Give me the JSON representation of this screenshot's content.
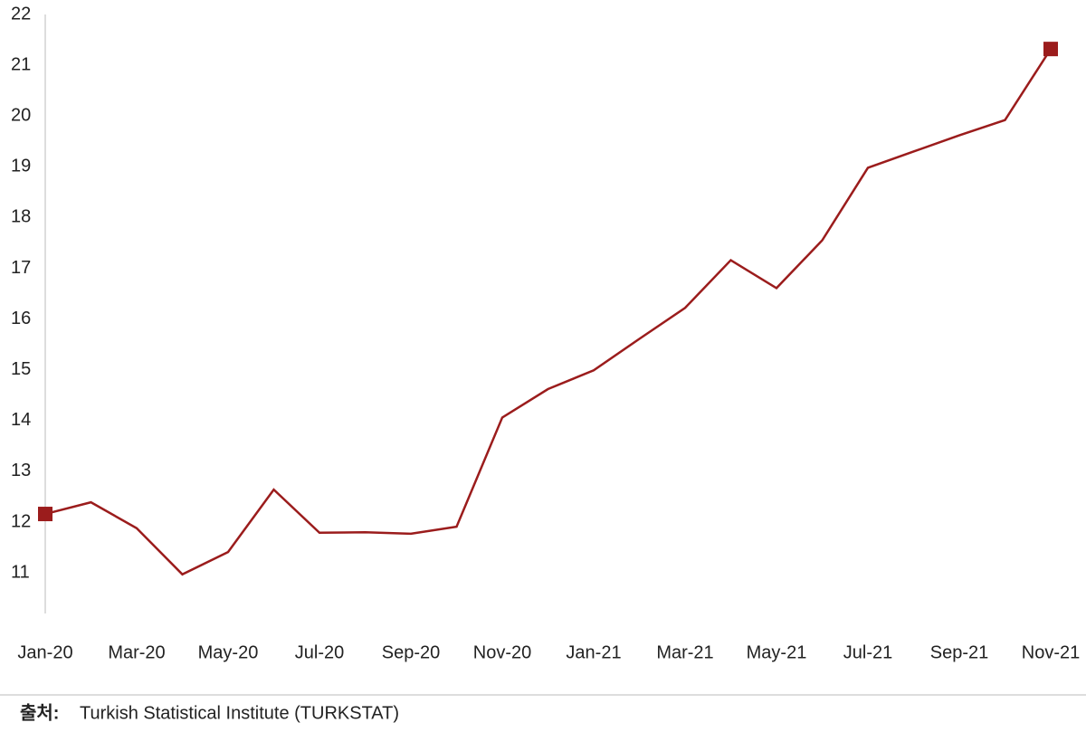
{
  "chart_data": {
    "type": "line",
    "categories": [
      "Jan-20",
      null,
      "Mar-20",
      null,
      "May-20",
      null,
      "Jul-20",
      null,
      "Sep-20",
      null,
      "Nov-20",
      null,
      "Jan-21",
      null,
      "Mar-21",
      null,
      "May-21",
      null,
      "Jul-21",
      null,
      "Sep-21",
      null,
      "Nov-21"
    ],
    "series": [
      {
        "color": "#9b1c1c",
        "values": [
          12.16,
          12.39,
          11.88,
          10.97,
          11.41,
          12.64,
          11.79,
          11.8,
          11.77,
          11.91,
          14.06,
          14.62,
          14.99,
          15.61,
          16.22,
          17.16,
          16.61,
          17.55,
          18.98,
          19.3,
          19.62,
          19.92,
          21.32
        ]
      }
    ],
    "ylim": [
      10.2,
      22
    ],
    "yticks": [
      11,
      12,
      13,
      14,
      15,
      16,
      17,
      18,
      19,
      20,
      21,
      22
    ],
    "end_markers": true,
    "grid": false,
    "source_label": "출처:",
    "source": "Turkish Statistical Institute (TURKSTAT)"
  }
}
